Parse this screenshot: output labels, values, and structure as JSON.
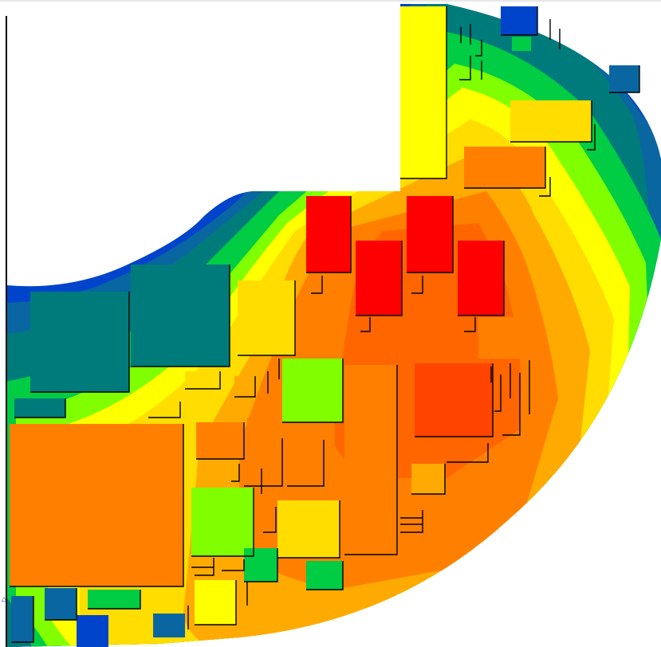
{
  "window": {
    "corner_label": "△"
  },
  "palette": {
    "background": "#ffffff",
    "outline": "#000000",
    "level_1": "#0044cc",
    "level_2": "#0a66a0",
    "level_3": "#007b7b",
    "level_4": "#00cc44",
    "level_5": "#80ff00",
    "level_6": "#ffff00",
    "level_7": "#ffdd00",
    "level_8": "#ffaa00",
    "level_9": "#ff8000",
    "level_10": "#ff6600",
    "level_11": "#ff4400",
    "level_12": "#ff0000"
  }
}
